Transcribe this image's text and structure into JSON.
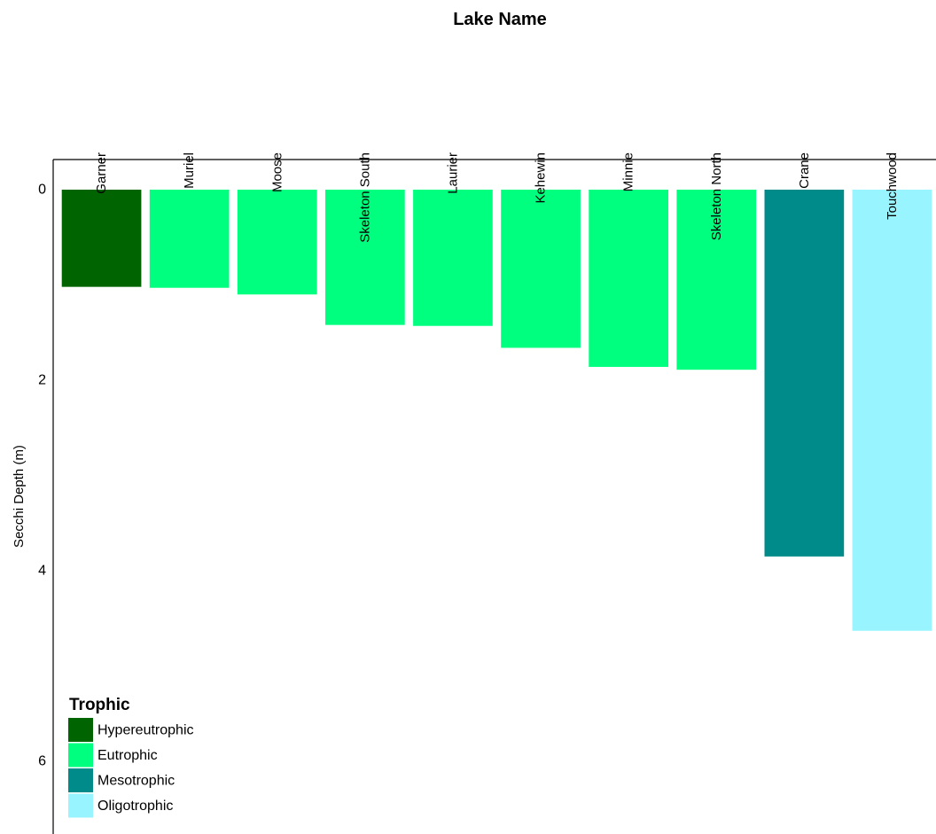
{
  "chart_data": {
    "type": "bar",
    "xlabel": "Lake Name",
    "ylabel": "Secchi Depth (m)",
    "categories": [
      "Garner",
      "Muriel",
      "Moose",
      "Skeleton South",
      "Laurier",
      "Kehewin",
      "Minnie",
      "Skeleton North",
      "Crane",
      "Touchwood"
    ],
    "values": [
      1.02,
      1.03,
      1.1,
      1.42,
      1.43,
      1.66,
      1.86,
      1.89,
      3.85,
      4.63
    ],
    "groups": [
      "Hypereutrophic",
      "Eutrophic",
      "Eutrophic",
      "Eutrophic",
      "Eutrophic",
      "Eutrophic",
      "Eutrophic",
      "Eutrophic",
      "Mesotrophic",
      "Oligotrophic"
    ],
    "ylim": [
      0,
      6.8
    ],
    "y_reversed": true,
    "x_axis_position": "top",
    "yticks": [
      0,
      2,
      4,
      6
    ],
    "grid": false,
    "legend": {
      "title": "Trophic",
      "position": "bottom-left",
      "items": [
        {
          "label": "Hypereutrophic",
          "color": "#006400"
        },
        {
          "label": "Eutrophic",
          "color": "#00FF7F"
        },
        {
          "label": "Mesotrophic",
          "color": "#008B8B"
        },
        {
          "label": "Oligotrophic",
          "color": "#98F5FF"
        }
      ]
    }
  }
}
